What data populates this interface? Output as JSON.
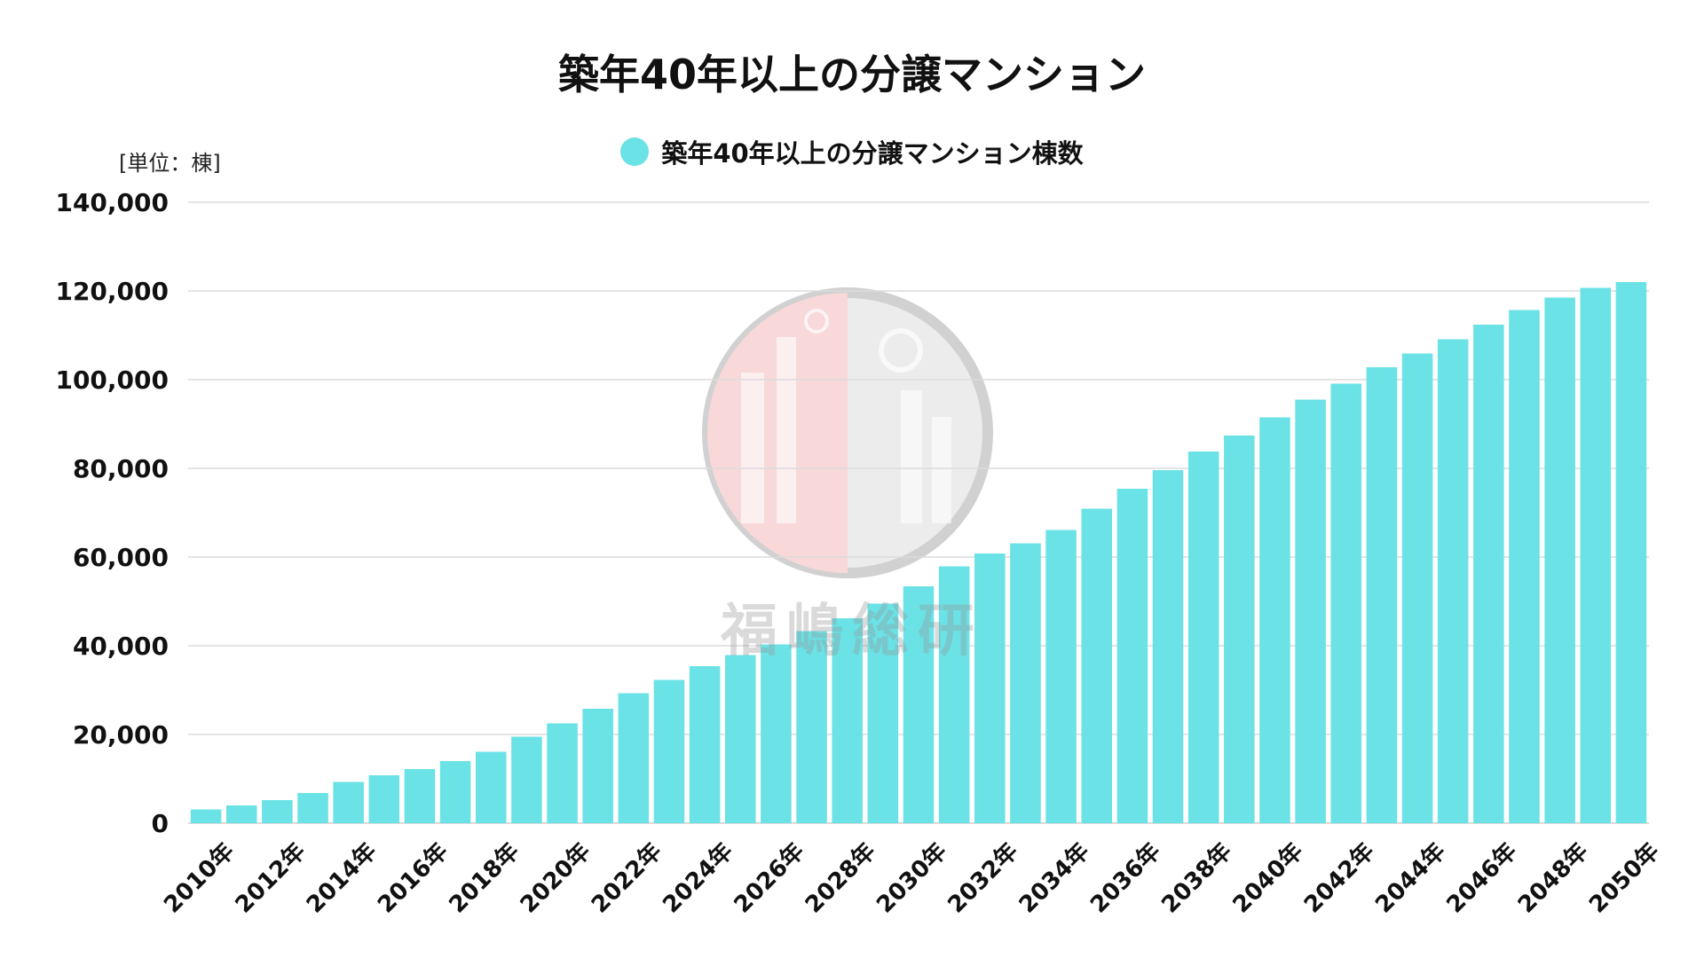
{
  "chart_data": {
    "type": "bar",
    "title": "築年40年以上の分譲マンション",
    "unit_label": "[単位：棟]",
    "legend_position": "top-center",
    "grid": true,
    "series": [
      {
        "name": "築年40年以上の分譲マンション棟数",
        "color": "#6ae2e6",
        "values": [
          3100,
          4000,
          5200,
          6800,
          9300,
          10800,
          12200,
          14000,
          16100,
          19500,
          22500,
          25800,
          29300,
          32300,
          35400,
          37900,
          40300,
          43300,
          46200,
          49500,
          53400,
          57900,
          60800,
          63100,
          66100,
          70900,
          75400,
          79600,
          83800,
          87400,
          91500,
          95500,
          99100,
          102800,
          105900,
          109100,
          112400,
          115700,
          118500,
          120700,
          122000
        ]
      }
    ],
    "categories": [
      "2010年",
      "2011年",
      "2012年",
      "2013年",
      "2014年",
      "2015年",
      "2016年",
      "2017年",
      "2018年",
      "2019年",
      "2020年",
      "2021年",
      "2022年",
      "2023年",
      "2024年",
      "2025年",
      "2026年",
      "2027年",
      "2028年",
      "2029年",
      "2030年",
      "2031年",
      "2032年",
      "2033年",
      "2034年",
      "2035年",
      "2036年",
      "2037年",
      "2038年",
      "2039年",
      "2040年",
      "2041年",
      "2042年",
      "2043年",
      "2044年",
      "2045年",
      "2046年",
      "2047年",
      "2048年",
      "2049年",
      "2050年"
    ],
    "visible_x_labels": [
      "2010年",
      "2012年",
      "2014年",
      "2016年",
      "2018年",
      "2020年",
      "2022年",
      "2024年",
      "2026年",
      "2028年",
      "2030年",
      "2032年",
      "2034年",
      "2036年",
      "2038年",
      "2040年",
      "2042年",
      "2044年",
      "2046年",
      "2048年",
      "2050年"
    ],
    "ylim": [
      0,
      140000
    ],
    "y_ticks": [
      0,
      20000,
      40000,
      60000,
      80000,
      100000,
      120000,
      140000
    ],
    "y_tick_labels": [
      "0",
      "20,000",
      "40,000",
      "60,000",
      "80,000",
      "100,000",
      "120,000",
      "140,000"
    ]
  },
  "watermark": {
    "text": "福嶋総研"
  }
}
